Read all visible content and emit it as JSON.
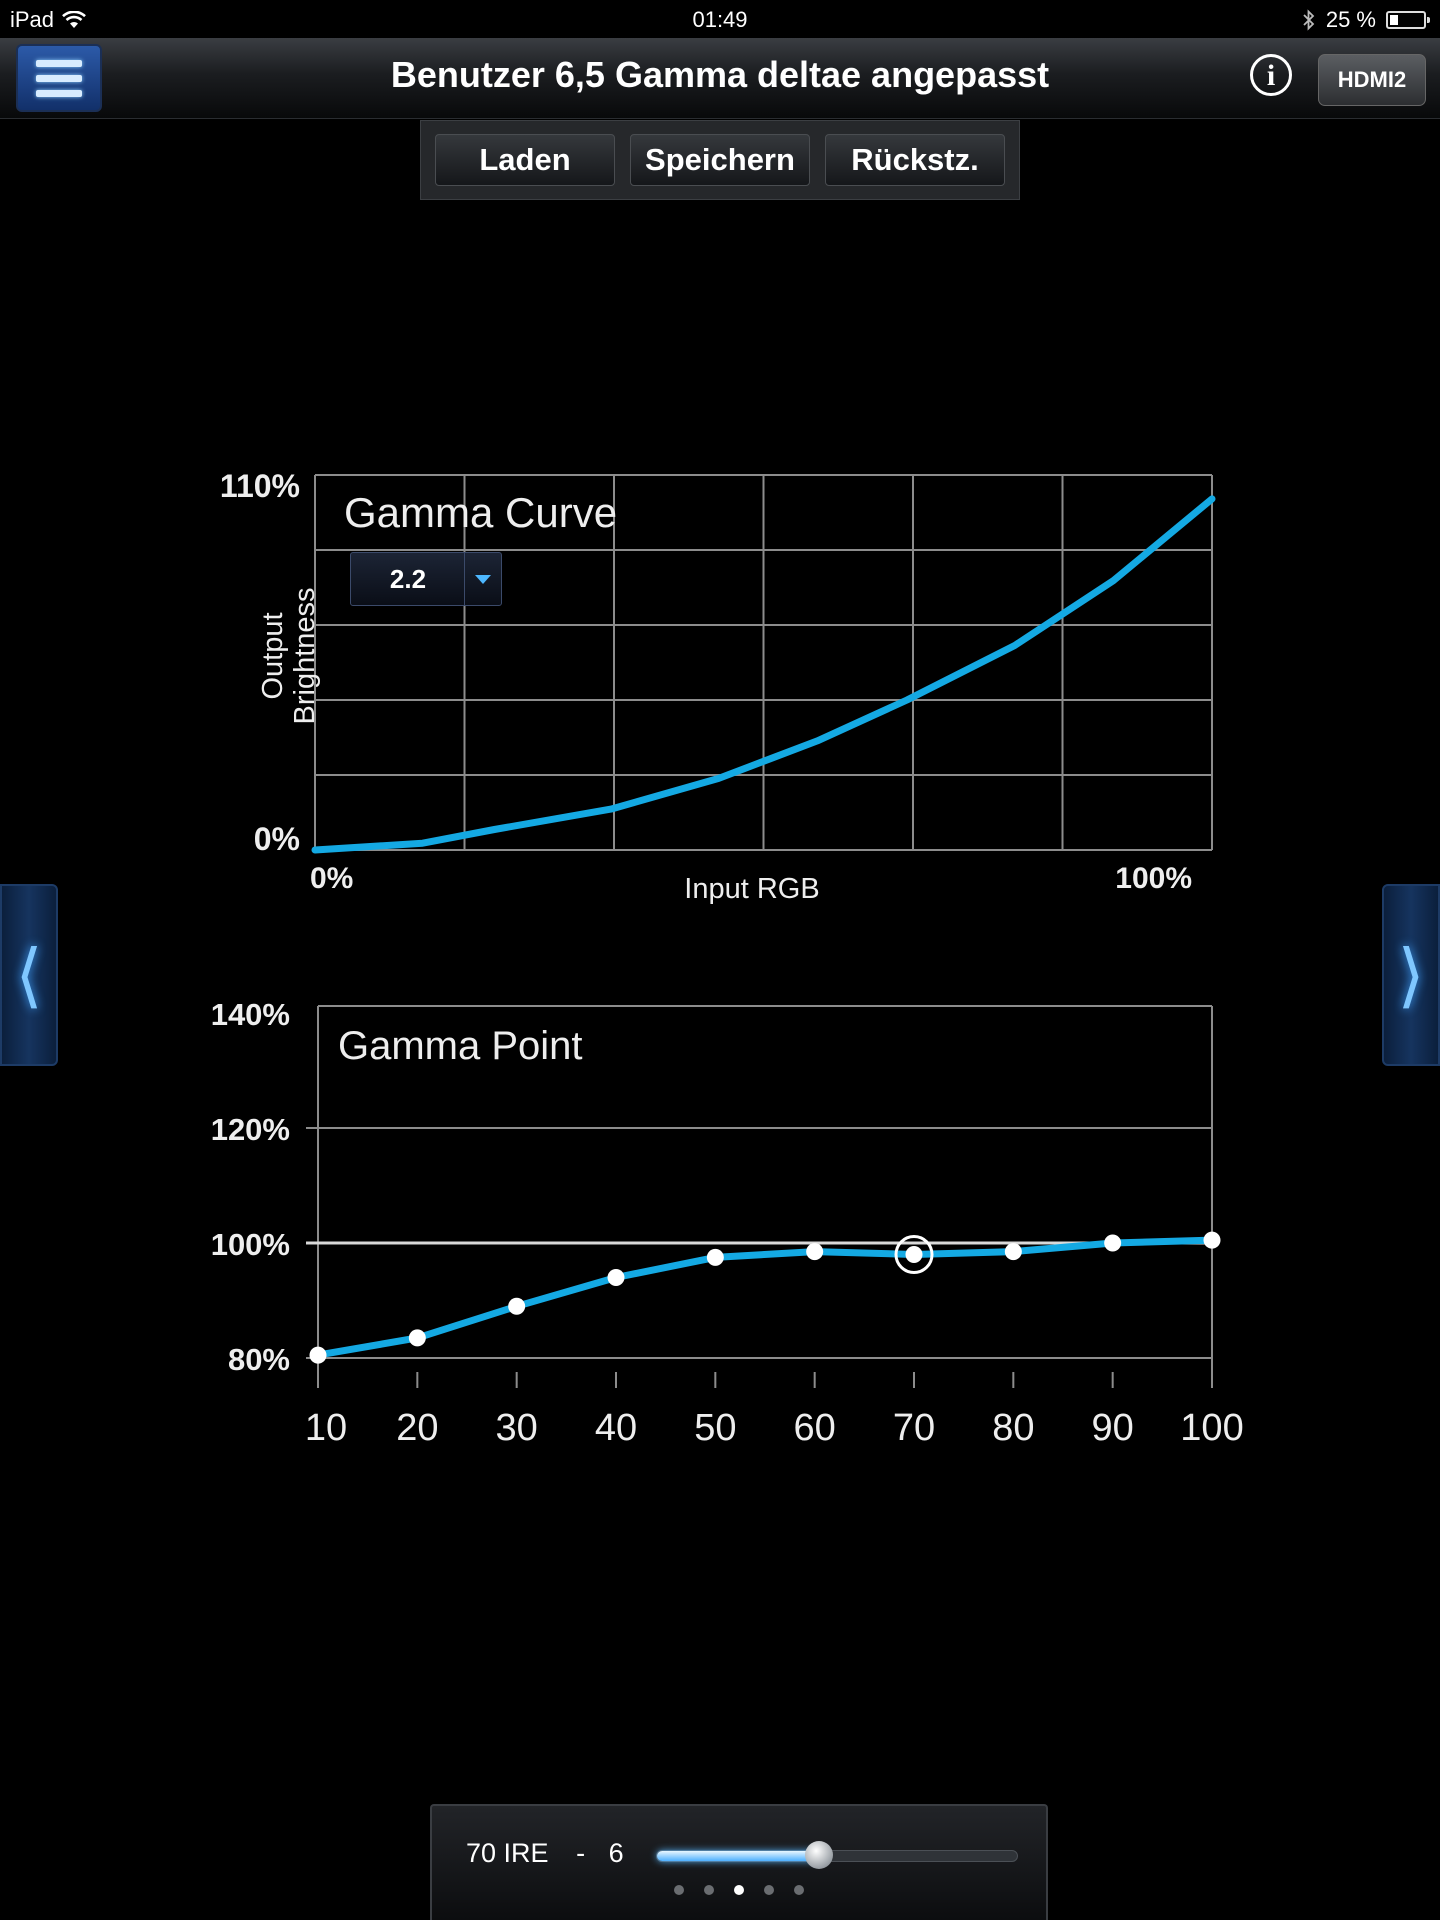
{
  "status_bar": {
    "device": "iPad",
    "time": "01:49",
    "battery_text": "25 %",
    "battery_level": 0.25
  },
  "header": {
    "title": "Benutzer 6,5 Gamma deltae angepasst",
    "info_glyph": "i",
    "input_label": "HDMI2"
  },
  "actions": {
    "load": "Laden",
    "save": "Speichern",
    "reset": "Rückstz."
  },
  "side_nav": {
    "prev_glyph": "⟨",
    "next_glyph": "⟩"
  },
  "bottom": {
    "ire_label": "70 IRE",
    "separator": "-",
    "value": "6",
    "slider_fraction": 0.45,
    "page_count": 5,
    "active_page": 3
  },
  "colors": {
    "accent": "#14a9e3",
    "grid": "#8c8c8c"
  },
  "chart_data": [
    {
      "type": "line",
      "title": "Gamma Curve",
      "xlabel": "Input RGB",
      "ylabel": "Output Brightness",
      "x_tick_labels": [
        "0%",
        "100%"
      ],
      "y_tick_labels": [
        "110%",
        "0%"
      ],
      "gamma_value": "2.2",
      "xlim": [
        0,
        100
      ],
      "ylim": [
        0,
        110
      ],
      "x": [
        0,
        12,
        20,
        33,
        45,
        56,
        66,
        78,
        89,
        100
      ],
      "y": [
        0,
        2,
        6,
        12,
        21,
        32,
        44,
        60,
        79,
        103
      ]
    },
    {
      "type": "line",
      "title": "Gamma Point",
      "x_tick_labels": [
        "10",
        "20",
        "30",
        "40",
        "50",
        "60",
        "70",
        "80",
        "90",
        "100"
      ],
      "y_tick_labels": [
        "140%",
        "120%",
        "100%",
        "80%"
      ],
      "ylim": [
        80,
        140
      ],
      "categories": [
        10,
        20,
        30,
        40,
        50,
        60,
        70,
        80,
        90,
        100
      ],
      "values": [
        80.5,
        83.5,
        89,
        94,
        97.5,
        98.5,
        98,
        98.5,
        100,
        100.5
      ],
      "selected_point": 70,
      "reference_line": 100
    }
  ]
}
